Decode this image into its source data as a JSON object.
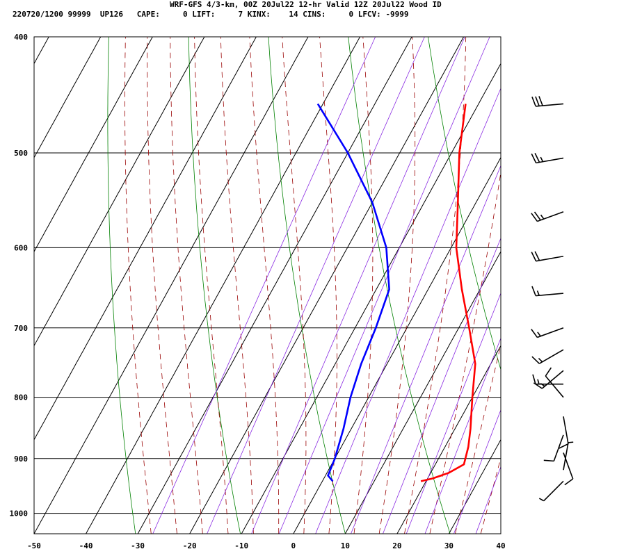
{
  "header": {
    "title": "WRF-GFS 4/3-km, 00Z 20Jul22 12-hr Valid 12Z 20Jul22 Wood ID",
    "stats": "220720/1200 99999  UP126   CAPE:     0 LIFT:     7 KINX:    14 CINS:     0 LFCV: -9999"
  },
  "colors": {
    "temperature": "#ff0000",
    "dewpoint": "#0000ff",
    "isotherm_grid": "#000000",
    "dry_adiabat": "#008000",
    "moist_adiabat": "#990000",
    "mixing_ratio": "#8a2be2",
    "wind_barb": "#000000"
  },
  "chart_data": {
    "type": "skew-t",
    "title": "WRF-GFS 4/3-km, 00Z 20Jul22 12-hr Valid 12Z 20Jul22 Wood ID",
    "xlim": [
      -50,
      40
    ],
    "ylim_hpa": [
      1040,
      400
    ],
    "x_ticks": [
      "-50",
      "-40",
      "-30",
      "-20",
      "-10",
      "0",
      "10",
      "20",
      "30",
      "40"
    ],
    "x_tick_values": [
      -50,
      -40,
      -30,
      -20,
      -10,
      0,
      10,
      20,
      30,
      40
    ],
    "p_ticks": [
      "400",
      "500",
      "600",
      "700",
      "800",
      "900",
      "1000"
    ],
    "p_tick_values": [
      400,
      500,
      600,
      700,
      800,
      900,
      1000
    ],
    "temperature": [
      {
        "p": 940,
        "t": 19.0
      },
      {
        "p": 935,
        "t": 21.0
      },
      {
        "p": 925,
        "t": 23.5
      },
      {
        "p": 910,
        "t": 25.5
      },
      {
        "p": 880,
        "t": 24.5
      },
      {
        "p": 850,
        "t": 23.0
      },
      {
        "p": 800,
        "t": 20.0
      },
      {
        "p": 750,
        "t": 17.0
      },
      {
        "p": 700,
        "t": 12.0
      },
      {
        "p": 650,
        "t": 6.5
      },
      {
        "p": 600,
        "t": 1.0
      },
      {
        "p": 550,
        "t": -3.5
      },
      {
        "p": 500,
        "t": -8.5
      },
      {
        "p": 455,
        "t": -12.5
      }
    ],
    "dewpoint": [
      {
        "p": 940,
        "t": 2.0
      },
      {
        "p": 930,
        "t": 0.5
      },
      {
        "p": 900,
        "t": 0.0
      },
      {
        "p": 850,
        "t": -1.5
      },
      {
        "p": 800,
        "t": -3.5
      },
      {
        "p": 750,
        "t": -5.0
      },
      {
        "p": 700,
        "t": -6.0
      },
      {
        "p": 650,
        "t": -7.5
      },
      {
        "p": 600,
        "t": -12.5
      },
      {
        "p": 550,
        "t": -20.0
      },
      {
        "p": 500,
        "t": -30.0
      },
      {
        "p": 455,
        "t": -41.0
      }
    ],
    "wind": [
      {
        "p": 455,
        "dir": 265,
        "spd": 30
      },
      {
        "p": 505,
        "dir": 260,
        "spd": 25
      },
      {
        "p": 560,
        "dir": 250,
        "spd": 25
      },
      {
        "p": 610,
        "dir": 260,
        "spd": 20
      },
      {
        "p": 655,
        "dir": 265,
        "spd": 15
      },
      {
        "p": 700,
        "dir": 250,
        "spd": 15
      },
      {
        "p": 730,
        "dir": 240,
        "spd": 15
      },
      {
        "p": 760,
        "dir": 230,
        "spd": 15
      },
      {
        "p": 780,
        "dir": 270,
        "spd": 15
      },
      {
        "p": 800,
        "dir": 320,
        "spd": 10
      },
      {
        "p": 830,
        "dir": 170,
        "spd": 10
      },
      {
        "p": 860,
        "dir": 200,
        "spd": 10
      },
      {
        "p": 890,
        "dir": 160,
        "spd": 10
      },
      {
        "p": 920,
        "dir": 10,
        "spd": 5
      },
      {
        "p": 940,
        "dir": 225,
        "spd": 5
      }
    ]
  }
}
